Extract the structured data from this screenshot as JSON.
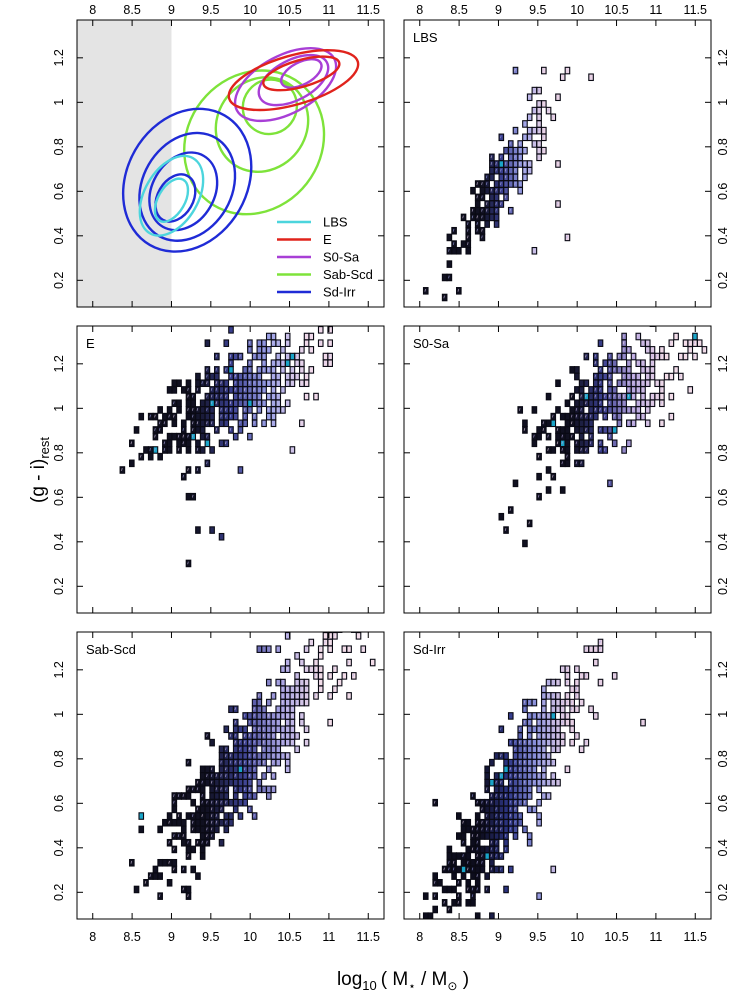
{
  "figure": {
    "ylabel": "(g - i)",
    "ylabel_subscript": "rest",
    "xlabel_prefix": "log",
    "xlabel_log_base": "10",
    "xlabel_body": "( M",
    "xlabel_star": "⋆",
    "xlabel_over": " / M",
    "xlabel_sun": "⊙",
    "xlabel_close": " )"
  },
  "chart_data": [
    {
      "id": "contours",
      "type": "contour",
      "title": "",
      "xlim": [
        7.8,
        11.7
      ],
      "ylim": [
        0.08,
        1.37
      ],
      "xticks": [
        "8",
        "8.5",
        "9",
        "9.5",
        "10",
        "10.5",
        "11",
        "11.5"
      ],
      "yticks": [
        "0.2",
        "0.4",
        "0.6",
        "0.8",
        "1",
        "1.2"
      ],
      "shaded_region": {
        "x": [
          7.8,
          9.0
        ],
        "color": "#e4e4e4"
      },
      "legend": {
        "placement": "bottom-right",
        "entries": [
          "LBS",
          "E",
          "S0-Sa",
          "Sab-Scd",
          "Sd-Irr"
        ]
      },
      "series": [
        {
          "name": "Sab-Scd",
          "color": "#7ee33a",
          "levels": [
            {
              "cx": 10.05,
              "cy": 0.82,
              "rx": 0.95,
              "ry": 0.3,
              "rot": 52
            },
            {
              "cx": 10.15,
              "cy": 0.9,
              "rx": 0.62,
              "ry": 0.2,
              "rot": 52
            },
            {
              "cx": 10.25,
              "cy": 0.98,
              "rx": 0.35,
              "ry": 0.12,
              "rot": 52
            }
          ]
        },
        {
          "name": "S0-Sa",
          "color": "#a83fd6",
          "levels": [
            {
              "cx": 10.45,
              "cy": 1.08,
              "rx": 0.7,
              "ry": 0.13,
              "rot": 28
            },
            {
              "cx": 10.55,
              "cy": 1.1,
              "rx": 0.48,
              "ry": 0.09,
              "rot": 28
            },
            {
              "cx": 10.65,
              "cy": 1.13,
              "rx": 0.28,
              "ry": 0.05,
              "rot": 28
            }
          ]
        },
        {
          "name": "E",
          "color": "#e0231c",
          "levels": [
            {
              "cx": 10.55,
              "cy": 1.1,
              "rx": 0.85,
              "ry": 0.11,
              "rot": 16
            },
            {
              "cx": 10.65,
              "cy": 1.13,
              "rx": 0.5,
              "ry": 0.06,
              "rot": 16
            }
          ]
        },
        {
          "name": "Sd-Irr",
          "color": "#1f2bd6",
          "levels": [
            {
              "cx": 9.2,
              "cy": 0.65,
              "rx": 0.95,
              "ry": 0.27,
              "rot": 60
            },
            {
              "cx": 9.2,
              "cy": 0.62,
              "rx": 0.72,
              "ry": 0.2,
              "rot": 60
            },
            {
              "cx": 9.15,
              "cy": 0.6,
              "rx": 0.52,
              "ry": 0.14,
              "rot": 60
            },
            {
              "cx": 9.05,
              "cy": 0.57,
              "rx": 0.32,
              "ry": 0.08,
              "rot": 60
            }
          ]
        },
        {
          "name": "LBS",
          "color": "#4cd5dd",
          "levels": [
            {
              "cx": 9.0,
              "cy": 0.58,
              "rx": 0.55,
              "ry": 0.12,
              "rot": 60
            },
            {
              "cx": 9.0,
              "cy": 0.56,
              "rx": 0.3,
              "ry": 0.06,
              "rot": 60
            }
          ]
        }
      ]
    },
    {
      "id": "LBS",
      "type": "heatmap",
      "title": "LBS",
      "xlim": [
        7.8,
        11.7
      ],
      "ylim": [
        0.08,
        1.37
      ],
      "xticks": [
        "8",
        "8.5",
        "9",
        "9.5",
        "10",
        "10.5",
        "11",
        "11.5"
      ],
      "yticks": [
        "0.2",
        "0.4",
        "0.6",
        "0.8",
        "1",
        "1.2"
      ],
      "cell_size": [
        0.06,
        0.03
      ],
      "density": {
        "cx": 9.05,
        "cy": 0.66,
        "sx": 0.3,
        "sy": 0.08,
        "slope": 0.48,
        "n": 220
      },
      "outliers": [
        [
          8.3,
          0.11
        ],
        [
          8.35,
          0.2
        ],
        [
          9.2,
          1.15
        ],
        [
          9.6,
          1.15
        ],
        [
          10.2,
          1.1
        ],
        [
          9.75,
          0.73
        ],
        [
          9.85,
          0.4
        ],
        [
          9.45,
          0.35
        ],
        [
          9.75,
          0.55
        ]
      ],
      "color_scale": [
        "#101020",
        "#3a3f8f",
        "#9aa0e8",
        "#e9d3e6"
      ],
      "accent_color": "#1aa5c8"
    },
    {
      "id": "E",
      "type": "heatmap",
      "title": "E",
      "xlim": [
        7.8,
        11.7
      ],
      "ylim": [
        0.08,
        1.37
      ],
      "xticks": [
        "8",
        "8.5",
        "9",
        "9.5",
        "10",
        "10.5",
        "11",
        "11.5"
      ],
      "yticks": [
        "0.2",
        "0.4",
        "0.6",
        "0.8",
        "1",
        "1.2"
      ],
      "cell_size": [
        0.06,
        0.03
      ],
      "density": {
        "cx": 9.8,
        "cy": 1.05,
        "sx": 0.55,
        "sy": 0.1,
        "slope": 0.18,
        "n": 420
      },
      "outliers": [
        [
          9.2,
          0.31
        ],
        [
          9.5,
          0.45
        ],
        [
          9.65,
          0.43
        ],
        [
          9.35,
          0.45
        ],
        [
          9.25,
          0.6
        ],
        [
          9.85,
          0.72
        ],
        [
          10.5,
          0.8
        ],
        [
          10.65,
          0.92
        ],
        [
          9.45,
          1.3
        ],
        [
          10.3,
          1.28
        ]
      ],
      "color_scale": [
        "#101020",
        "#3a3f8f",
        "#9aa0e8",
        "#f0d9ea"
      ],
      "accent_color": "#1aa5c8"
    },
    {
      "id": "S0-Sa",
      "type": "heatmap",
      "title": "S0-Sa",
      "xlim": [
        7.8,
        11.7
      ],
      "ylim": [
        0.08,
        1.37
      ],
      "xticks": [
        "8",
        "8.5",
        "9",
        "9.5",
        "10",
        "10.5",
        "11",
        "11.5"
      ],
      "yticks": [
        "0.2",
        "0.4",
        "0.6",
        "0.8",
        "1",
        "1.2"
      ],
      "cell_size": [
        0.06,
        0.03
      ],
      "density": {
        "cx": 10.35,
        "cy": 1.02,
        "sx": 0.45,
        "sy": 0.11,
        "slope": 0.18,
        "n": 360
      },
      "outliers": [
        [
          9.0,
          0.5
        ],
        [
          9.1,
          0.45
        ],
        [
          9.15,
          0.55
        ],
        [
          9.3,
          0.38
        ],
        [
          9.4,
          0.48
        ],
        [
          9.5,
          0.6
        ],
        [
          9.8,
          0.62
        ],
        [
          9.7,
          0.7
        ],
        [
          9.2,
          0.65
        ],
        [
          9.3,
          0.9
        ],
        [
          11.2,
          1.3
        ]
      ],
      "color_scale": [
        "#101020",
        "#3a3f8f",
        "#b7a6e0",
        "#f3dde9"
      ],
      "accent_color": "#1aa5c8"
    },
    {
      "id": "Sab-Scd",
      "type": "heatmap",
      "title": "Sab-Scd",
      "xlim": [
        7.8,
        11.7
      ],
      "ylim": [
        0.08,
        1.37
      ],
      "xticks": [
        "8",
        "8.5",
        "9",
        "9.5",
        "10",
        "10.5",
        "11",
        "11.5"
      ],
      "yticks": [
        "0.2",
        "0.4",
        "0.6",
        "0.8",
        "1",
        "1.2"
      ],
      "cell_size": [
        0.06,
        0.03
      ],
      "density": {
        "cx": 9.95,
        "cy": 0.8,
        "sx": 0.55,
        "sy": 0.12,
        "slope": 0.42,
        "n": 620
      },
      "outliers": [
        [
          8.5,
          0.32
        ],
        [
          8.55,
          0.2
        ],
        [
          8.7,
          0.25
        ],
        [
          8.85,
          0.28
        ],
        [
          9.2,
          0.2
        ],
        [
          9.2,
          0.18
        ],
        [
          10.3,
          0.85
        ],
        [
          10.9,
          1.1
        ],
        [
          10.1,
          1.28
        ],
        [
          10.2,
          1.3
        ]
      ],
      "color_scale": [
        "#101020",
        "#3a3f8f",
        "#a7a3e4",
        "#f3dde9"
      ],
      "accent_color": "#1aa5c8"
    },
    {
      "id": "Sd-Irr",
      "type": "heatmap",
      "title": "Sd-Irr",
      "xlim": [
        7.8,
        11.7
      ],
      "ylim": [
        0.08,
        1.37
      ],
      "xticks": [
        "8",
        "8.5",
        "9",
        "9.5",
        "10",
        "10.5",
        "11",
        "11.5"
      ],
      "yticks": [
        "0.2",
        "0.4",
        "0.6",
        "0.8",
        "1",
        "1.2"
      ],
      "cell_size": [
        0.06,
        0.03
      ],
      "density": {
        "cx": 9.15,
        "cy": 0.66,
        "sx": 0.42,
        "sy": 0.12,
        "slope": 0.52,
        "n": 720
      },
      "outliers": [
        [
          8.1,
          0.1
        ],
        [
          8.15,
          0.1
        ],
        [
          8.3,
          0.15
        ],
        [
          8.75,
          0.1
        ],
        [
          8.9,
          0.1
        ],
        [
          10.3,
          1.3
        ],
        [
          10.8,
          0.97
        ],
        [
          10.2,
          1.02
        ],
        [
          9.7,
          0.3
        ],
        [
          9.5,
          0.18
        ]
      ],
      "color_scale": [
        "#0d0d1d",
        "#2e3687",
        "#8f96e0",
        "#e6cfe4"
      ],
      "accent_color": "#1aa5c8"
    }
  ]
}
